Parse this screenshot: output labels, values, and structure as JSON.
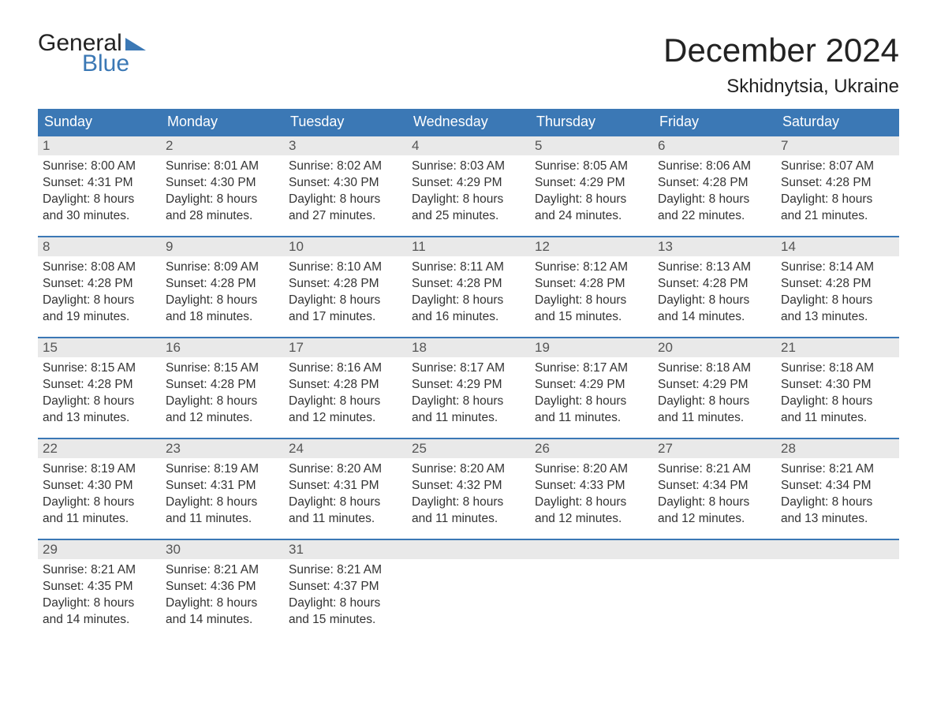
{
  "logo": {
    "general": "General",
    "blue": "Blue"
  },
  "title": {
    "month": "December 2024",
    "location": "Skhidnytsia, Ukraine"
  },
  "colors": {
    "header_bg": "#3b78b5",
    "header_text": "#ffffff",
    "strip_bg": "#e9e9e9",
    "week_border": "#3b78b5",
    "text": "#333333",
    "background": "#ffffff"
  },
  "daynames": [
    "Sunday",
    "Monday",
    "Tuesday",
    "Wednesday",
    "Thursday",
    "Friday",
    "Saturday"
  ],
  "weeks": [
    [
      {
        "n": "1",
        "sr": "Sunrise: 8:00 AM",
        "ss": "Sunset: 4:31 PM",
        "dl1": "Daylight: 8 hours",
        "dl2": "and 30 minutes."
      },
      {
        "n": "2",
        "sr": "Sunrise: 8:01 AM",
        "ss": "Sunset: 4:30 PM",
        "dl1": "Daylight: 8 hours",
        "dl2": "and 28 minutes."
      },
      {
        "n": "3",
        "sr": "Sunrise: 8:02 AM",
        "ss": "Sunset: 4:30 PM",
        "dl1": "Daylight: 8 hours",
        "dl2": "and 27 minutes."
      },
      {
        "n": "4",
        "sr": "Sunrise: 8:03 AM",
        "ss": "Sunset: 4:29 PM",
        "dl1": "Daylight: 8 hours",
        "dl2": "and 25 minutes."
      },
      {
        "n": "5",
        "sr": "Sunrise: 8:05 AM",
        "ss": "Sunset: 4:29 PM",
        "dl1": "Daylight: 8 hours",
        "dl2": "and 24 minutes."
      },
      {
        "n": "6",
        "sr": "Sunrise: 8:06 AM",
        "ss": "Sunset: 4:28 PM",
        "dl1": "Daylight: 8 hours",
        "dl2": "and 22 minutes."
      },
      {
        "n": "7",
        "sr": "Sunrise: 8:07 AM",
        "ss": "Sunset: 4:28 PM",
        "dl1": "Daylight: 8 hours",
        "dl2": "and 21 minutes."
      }
    ],
    [
      {
        "n": "8",
        "sr": "Sunrise: 8:08 AM",
        "ss": "Sunset: 4:28 PM",
        "dl1": "Daylight: 8 hours",
        "dl2": "and 19 minutes."
      },
      {
        "n": "9",
        "sr": "Sunrise: 8:09 AM",
        "ss": "Sunset: 4:28 PM",
        "dl1": "Daylight: 8 hours",
        "dl2": "and 18 minutes."
      },
      {
        "n": "10",
        "sr": "Sunrise: 8:10 AM",
        "ss": "Sunset: 4:28 PM",
        "dl1": "Daylight: 8 hours",
        "dl2": "and 17 minutes."
      },
      {
        "n": "11",
        "sr": "Sunrise: 8:11 AM",
        "ss": "Sunset: 4:28 PM",
        "dl1": "Daylight: 8 hours",
        "dl2": "and 16 minutes."
      },
      {
        "n": "12",
        "sr": "Sunrise: 8:12 AM",
        "ss": "Sunset: 4:28 PM",
        "dl1": "Daylight: 8 hours",
        "dl2": "and 15 minutes."
      },
      {
        "n": "13",
        "sr": "Sunrise: 8:13 AM",
        "ss": "Sunset: 4:28 PM",
        "dl1": "Daylight: 8 hours",
        "dl2": "and 14 minutes."
      },
      {
        "n": "14",
        "sr": "Sunrise: 8:14 AM",
        "ss": "Sunset: 4:28 PM",
        "dl1": "Daylight: 8 hours",
        "dl2": "and 13 minutes."
      }
    ],
    [
      {
        "n": "15",
        "sr": "Sunrise: 8:15 AM",
        "ss": "Sunset: 4:28 PM",
        "dl1": "Daylight: 8 hours",
        "dl2": "and 13 minutes."
      },
      {
        "n": "16",
        "sr": "Sunrise: 8:15 AM",
        "ss": "Sunset: 4:28 PM",
        "dl1": "Daylight: 8 hours",
        "dl2": "and 12 minutes."
      },
      {
        "n": "17",
        "sr": "Sunrise: 8:16 AM",
        "ss": "Sunset: 4:28 PM",
        "dl1": "Daylight: 8 hours",
        "dl2": "and 12 minutes."
      },
      {
        "n": "18",
        "sr": "Sunrise: 8:17 AM",
        "ss": "Sunset: 4:29 PM",
        "dl1": "Daylight: 8 hours",
        "dl2": "and 11 minutes."
      },
      {
        "n": "19",
        "sr": "Sunrise: 8:17 AM",
        "ss": "Sunset: 4:29 PM",
        "dl1": "Daylight: 8 hours",
        "dl2": "and 11 minutes."
      },
      {
        "n": "20",
        "sr": "Sunrise: 8:18 AM",
        "ss": "Sunset: 4:29 PM",
        "dl1": "Daylight: 8 hours",
        "dl2": "and 11 minutes."
      },
      {
        "n": "21",
        "sr": "Sunrise: 8:18 AM",
        "ss": "Sunset: 4:30 PM",
        "dl1": "Daylight: 8 hours",
        "dl2": "and 11 minutes."
      }
    ],
    [
      {
        "n": "22",
        "sr": "Sunrise: 8:19 AM",
        "ss": "Sunset: 4:30 PM",
        "dl1": "Daylight: 8 hours",
        "dl2": "and 11 minutes."
      },
      {
        "n": "23",
        "sr": "Sunrise: 8:19 AM",
        "ss": "Sunset: 4:31 PM",
        "dl1": "Daylight: 8 hours",
        "dl2": "and 11 minutes."
      },
      {
        "n": "24",
        "sr": "Sunrise: 8:20 AM",
        "ss": "Sunset: 4:31 PM",
        "dl1": "Daylight: 8 hours",
        "dl2": "and 11 minutes."
      },
      {
        "n": "25",
        "sr": "Sunrise: 8:20 AM",
        "ss": "Sunset: 4:32 PM",
        "dl1": "Daylight: 8 hours",
        "dl2": "and 11 minutes."
      },
      {
        "n": "26",
        "sr": "Sunrise: 8:20 AM",
        "ss": "Sunset: 4:33 PM",
        "dl1": "Daylight: 8 hours",
        "dl2": "and 12 minutes."
      },
      {
        "n": "27",
        "sr": "Sunrise: 8:21 AM",
        "ss": "Sunset: 4:34 PM",
        "dl1": "Daylight: 8 hours",
        "dl2": "and 12 minutes."
      },
      {
        "n": "28",
        "sr": "Sunrise: 8:21 AM",
        "ss": "Sunset: 4:34 PM",
        "dl1": "Daylight: 8 hours",
        "dl2": "and 13 minutes."
      }
    ],
    [
      {
        "n": "29",
        "sr": "Sunrise: 8:21 AM",
        "ss": "Sunset: 4:35 PM",
        "dl1": "Daylight: 8 hours",
        "dl2": "and 14 minutes."
      },
      {
        "n": "30",
        "sr": "Sunrise: 8:21 AM",
        "ss": "Sunset: 4:36 PM",
        "dl1": "Daylight: 8 hours",
        "dl2": "and 14 minutes."
      },
      {
        "n": "31",
        "sr": "Sunrise: 8:21 AM",
        "ss": "Sunset: 4:37 PM",
        "dl1": "Daylight: 8 hours",
        "dl2": "and 15 minutes."
      },
      {
        "empty": true
      },
      {
        "empty": true
      },
      {
        "empty": true
      },
      {
        "empty": true
      }
    ]
  ]
}
